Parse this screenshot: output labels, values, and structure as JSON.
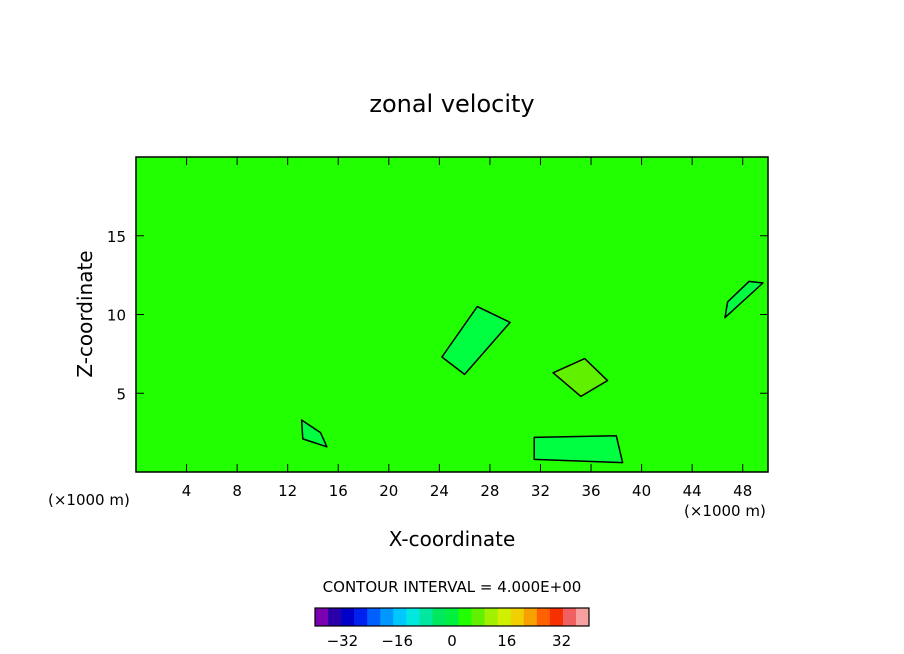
{
  "chart_data": {
    "type": "heatmap",
    "title": "zonal velocity",
    "xlabel": "X-coordinate",
    "ylabel": "Z-coordinate",
    "x_unit": "(×1000 m)",
    "x_ticks": [
      "4",
      "8",
      "12",
      "16",
      "20",
      "24",
      "28",
      "32",
      "36",
      "40",
      "44",
      "48"
    ],
    "x_tick_values": [
      4,
      8,
      12,
      16,
      20,
      24,
      28,
      32,
      36,
      40,
      44,
      48
    ],
    "y_ticks": [
      "5",
      "10",
      "15"
    ],
    "y_tick_values": [
      5,
      10,
      15
    ],
    "xlim": [
      0,
      50
    ],
    "ylim": [
      0,
      20
    ],
    "background_color": "#22ff00",
    "contour_interval_label": "CONTOUR INTERVAL = 4.000E+00",
    "colorbar": {
      "levels": [
        -40,
        -36,
        -32,
        -28,
        -24,
        -20,
        -16,
        -12,
        -8,
        -4,
        0,
        4,
        8,
        12,
        16,
        20,
        24,
        28,
        32,
        36,
        40
      ],
      "colors": [
        "#7a00b0",
        "#2a00a8",
        "#0000c8",
        "#0020f0",
        "#0060ff",
        "#0098ff",
        "#00c8ff",
        "#00e8e0",
        "#00e8a0",
        "#00e860",
        "#00f040",
        "#22ff00",
        "#60f000",
        "#a0f000",
        "#d0f000",
        "#f0d000",
        "#f8a000",
        "#ff6000",
        "#f83000",
        "#f06060",
        "#f8a0a0"
      ],
      "tick_labels": [
        "-32",
        "-16",
        "0",
        "16",
        "32"
      ],
      "tick_values": [
        -32,
        -16,
        0,
        16,
        32
      ]
    },
    "contour_regions": [
      {
        "name": "upper-center",
        "value_band": [
          -4,
          0
        ],
        "color": "#00ff40",
        "points": [
          [
            24.2,
            7.3
          ],
          [
            27,
            10.5
          ],
          [
            29.6,
            9.5
          ],
          [
            26,
            6.2
          ]
        ]
      },
      {
        "name": "upper-right",
        "value_band": [
          -4,
          0
        ],
        "color": "#00ff40",
        "points": [
          [
            46.6,
            9.8
          ],
          [
            49.6,
            12.0
          ],
          [
            48.5,
            12.1
          ],
          [
            46.8,
            10.8
          ]
        ]
      },
      {
        "name": "mid-right",
        "value_band": [
          4,
          8
        ],
        "color": "#60f000",
        "points": [
          [
            33,
            6.3
          ],
          [
            35.5,
            7.2
          ],
          [
            37.3,
            5.8
          ],
          [
            35.2,
            4.8
          ]
        ]
      },
      {
        "name": "low-band-1",
        "value_band": [
          -4,
          0
        ],
        "color": "#00ff40",
        "points": [
          [
            31.5,
            2.2
          ],
          [
            38,
            2.3
          ],
          [
            38.5,
            0.6
          ],
          [
            31.5,
            0.8
          ]
        ]
      },
      {
        "name": "low-band-2",
        "value_band": [
          -4,
          0
        ],
        "color": "#00ff40",
        "points": [
          [
            13.1,
            3.3
          ],
          [
            14.6,
            2.5
          ],
          [
            15.1,
            1.6
          ],
          [
            13.2,
            2.1
          ]
        ]
      }
    ]
  }
}
